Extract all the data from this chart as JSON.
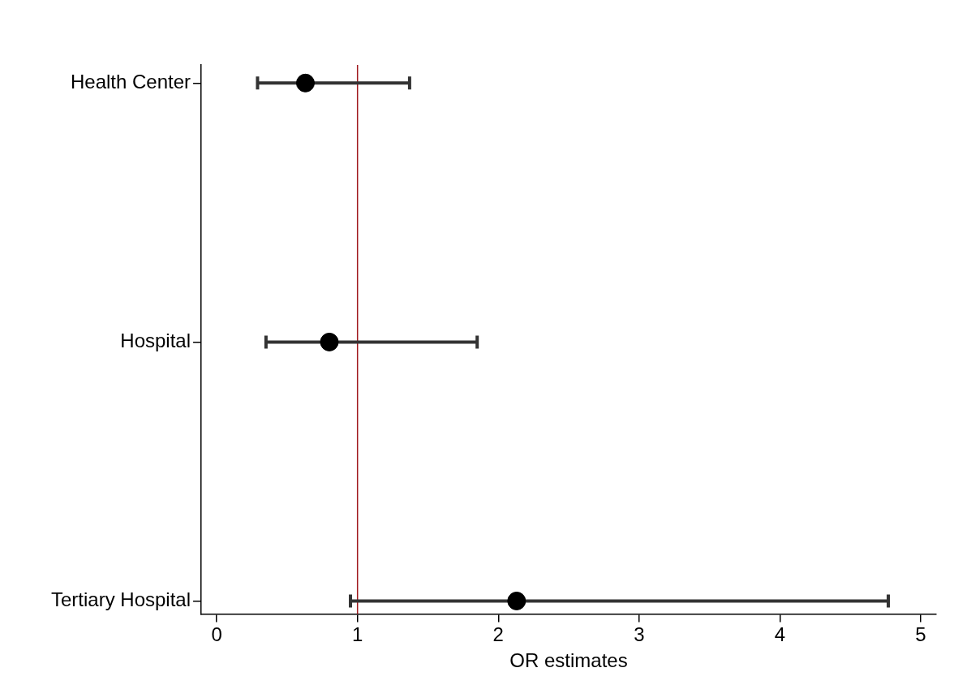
{
  "chart_data": {
    "type": "scatter",
    "orientation": "horizontal",
    "xlabel": "OR estimates",
    "categories": [
      "Health Center",
      "Hospital",
      "Tertiary Hospital"
    ],
    "values": [
      0.63,
      0.8,
      2.13
    ],
    "errors": [
      [
        0.29,
        1.37
      ],
      [
        0.35,
        1.85
      ],
      [
        0.95,
        4.77
      ]
    ],
    "color": "#000000",
    "marker": "circle",
    "grid": false,
    "legend": false,
    "xlim": [
      -0.11,
      5.11
    ],
    "xticks": [
      0,
      1,
      2,
      3,
      4,
      5
    ],
    "ref_lines": [
      {
        "axis": "x",
        "value": 1,
        "color": "#a0191e"
      }
    ]
  }
}
